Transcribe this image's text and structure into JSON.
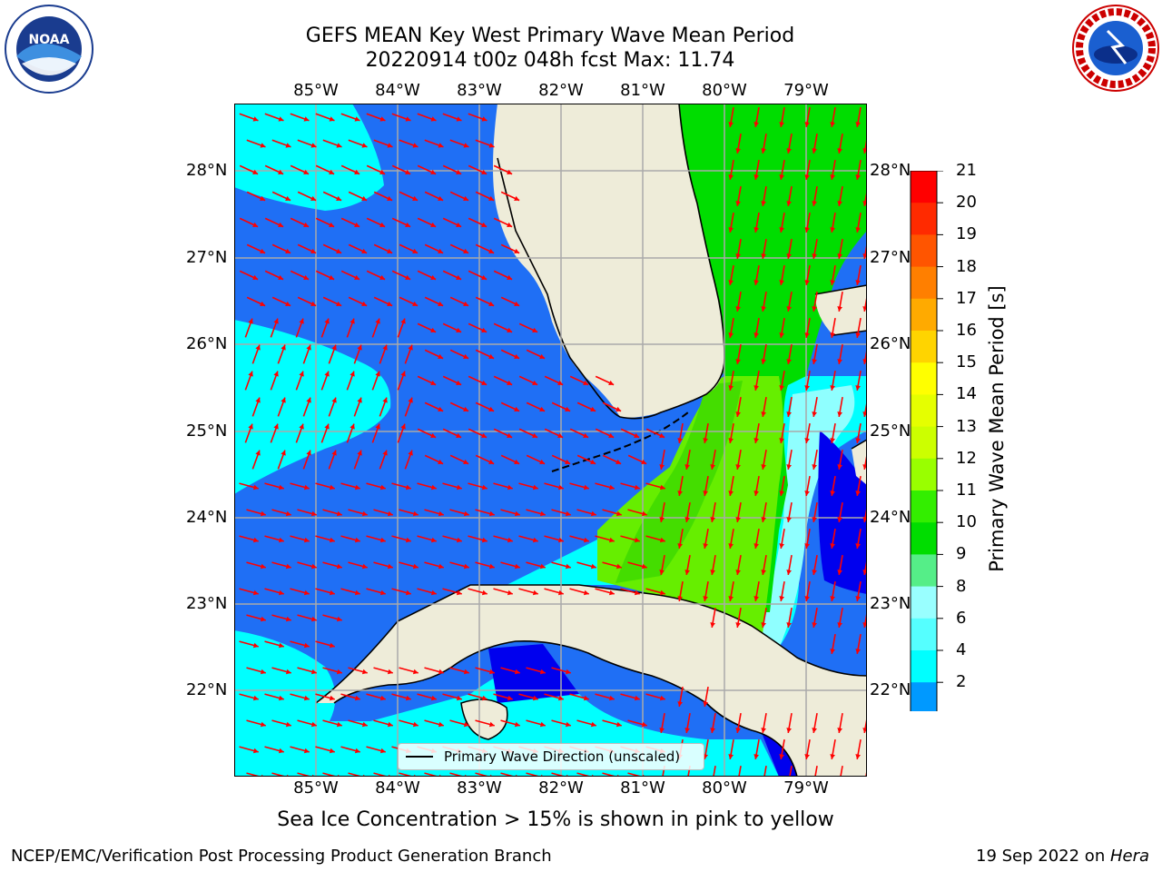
{
  "title_line1": "GEFS MEAN Key West Primary Wave Mean Period",
  "title_line2": "20220914 t00z 048h fcst   Max: 11.74",
  "lon_labels": [
    "85°W",
    "84°W",
    "83°W",
    "82°W",
    "81°W",
    "80°W",
    "79°W"
  ],
  "lat_labels": [
    "28°N",
    "27°N",
    "26°N",
    "25°N",
    "24°N",
    "23°N",
    "22°N"
  ],
  "colorbar": {
    "label": "Primary Wave Mean Period [s]",
    "ticks": [
      "21",
      "20",
      "19",
      "18",
      "17",
      "16",
      "15",
      "14",
      "13",
      "12",
      "11",
      "10",
      "9",
      "8",
      "6",
      "4",
      "2"
    ],
    "colors": [
      "#ff0000",
      "#ff2a00",
      "#ff5500",
      "#ff7f00",
      "#ffaa00",
      "#ffd400",
      "#ffff00",
      "#e5ff00",
      "#ccff00",
      "#99ff00",
      "#33ee00",
      "#00dd00",
      "#55ee88",
      "#99ffff",
      "#55ffff",
      "#00ffff",
      "#0099ff",
      "#0055ff"
    ],
    "extend_color": "#0000ee"
  },
  "legend": {
    "label": "Primary Wave Direction (unscaled)"
  },
  "sea_ice_note": "Sea Ice Concentration > 15% is shown in pink to yellow",
  "footer_left": "NCEP/EMC/Verification Post Processing Product Generation Branch",
  "footer_date": "19 Sep 2022 on ",
  "footer_host": "Hera",
  "logos": {
    "left": {
      "name": "noaa-logo",
      "text": "NOAA"
    },
    "right": {
      "name": "nws-logo",
      "text": "NATIONAL WEATHER SERVICE"
    }
  },
  "map_colors": {
    "land": "#eeecd9",
    "deep_blue": "#1f6ff5",
    "cyan": "#00ffff",
    "light_cyan": "#8fffff",
    "green": "#00dd00",
    "yellow_green": "#66ee00",
    "dark_blue": "#0000ee",
    "arrow": "#ff0000"
  }
}
